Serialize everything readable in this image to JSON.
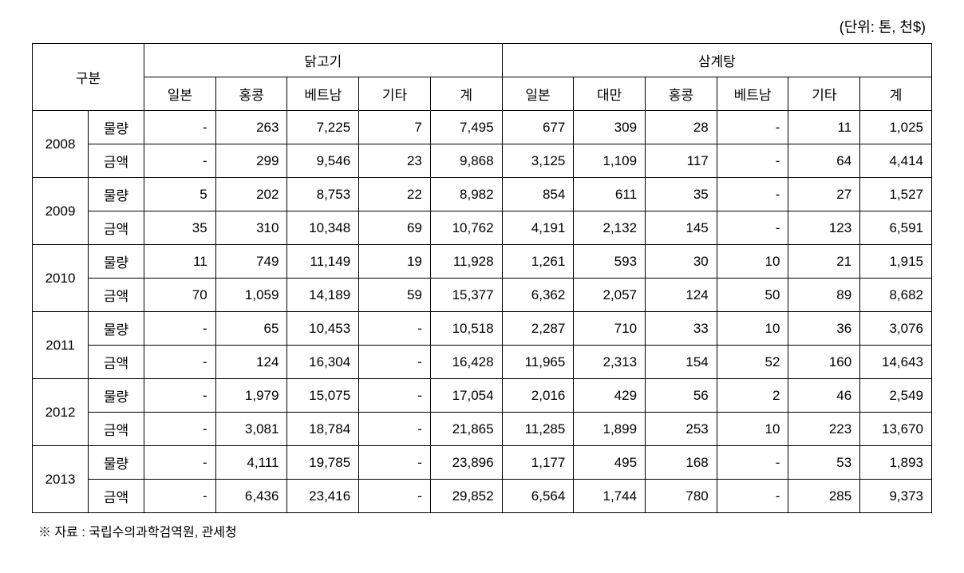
{
  "unit_label": "(단위: 톤, 천$)",
  "header": {
    "category_label": "구분",
    "group1": {
      "title": "닭고기",
      "cols": [
        "일본",
        "홍콩",
        "베트남",
        "기타",
        "계"
      ]
    },
    "group2": {
      "title": "삼계탕",
      "cols": [
        "일본",
        "대만",
        "홍콩",
        "베트남",
        "기타",
        "계"
      ]
    }
  },
  "metric_labels": {
    "vol": "물량",
    "amt": "금액"
  },
  "years": [
    "2008",
    "2009",
    "2010",
    "2011",
    "2012",
    "2013"
  ],
  "rows": {
    "2008": {
      "vol": [
        "-",
        "263",
        "7,225",
        "7",
        "7,495",
        "677",
        "309",
        "28",
        "-",
        "11",
        "1,025"
      ],
      "amt": [
        "-",
        "299",
        "9,546",
        "23",
        "9,868",
        "3,125",
        "1,109",
        "117",
        "-",
        "64",
        "4,414"
      ]
    },
    "2009": {
      "vol": [
        "5",
        "202",
        "8,753",
        "22",
        "8,982",
        "854",
        "611",
        "35",
        "-",
        "27",
        "1,527"
      ],
      "amt": [
        "35",
        "310",
        "10,348",
        "69",
        "10,762",
        "4,191",
        "2,132",
        "145",
        "-",
        "123",
        "6,591"
      ]
    },
    "2010": {
      "vol": [
        "11",
        "749",
        "11,149",
        "19",
        "11,928",
        "1,261",
        "593",
        "30",
        "10",
        "21",
        "1,915"
      ],
      "amt": [
        "70",
        "1,059",
        "14,189",
        "59",
        "15,377",
        "6,362",
        "2,057",
        "124",
        "50",
        "89",
        "8,682"
      ]
    },
    "2011": {
      "vol": [
        "-",
        "65",
        "10,453",
        "-",
        "10,518",
        "2,287",
        "710",
        "33",
        "10",
        "36",
        "3,076"
      ],
      "amt": [
        "-",
        "124",
        "16,304",
        "-",
        "16,428",
        "11,965",
        "2,313",
        "154",
        "52",
        "160",
        "14,643"
      ]
    },
    "2012": {
      "vol": [
        "-",
        "1,979",
        "15,075",
        "-",
        "17,054",
        "2,016",
        "429",
        "56",
        "2",
        "46",
        "2,549"
      ],
      "amt": [
        "-",
        "3,081",
        "18,784",
        "-",
        "21,865",
        "11,285",
        "1,899",
        "253",
        "10",
        "223",
        "13,670"
      ]
    },
    "2013": {
      "vol": [
        "-",
        "4,111",
        "19,785",
        "-",
        "23,896",
        "1,177",
        "495",
        "168",
        "-",
        "53",
        "1,893"
      ],
      "amt": [
        "-",
        "6,436",
        "23,416",
        "-",
        "29,852",
        "6,564",
        "1,744",
        "780",
        "-",
        "285",
        "9,373"
      ]
    }
  },
  "footnote": "※ 자료 : 국립수의과학검역원, 관세청",
  "style": {
    "background_color": "#ffffff",
    "text_color": "#000000",
    "border_color": "#000000",
    "header_fontsize": 17,
    "cell_fontsize": 17,
    "unit_fontsize": 18,
    "footnote_fontsize": 16
  }
}
